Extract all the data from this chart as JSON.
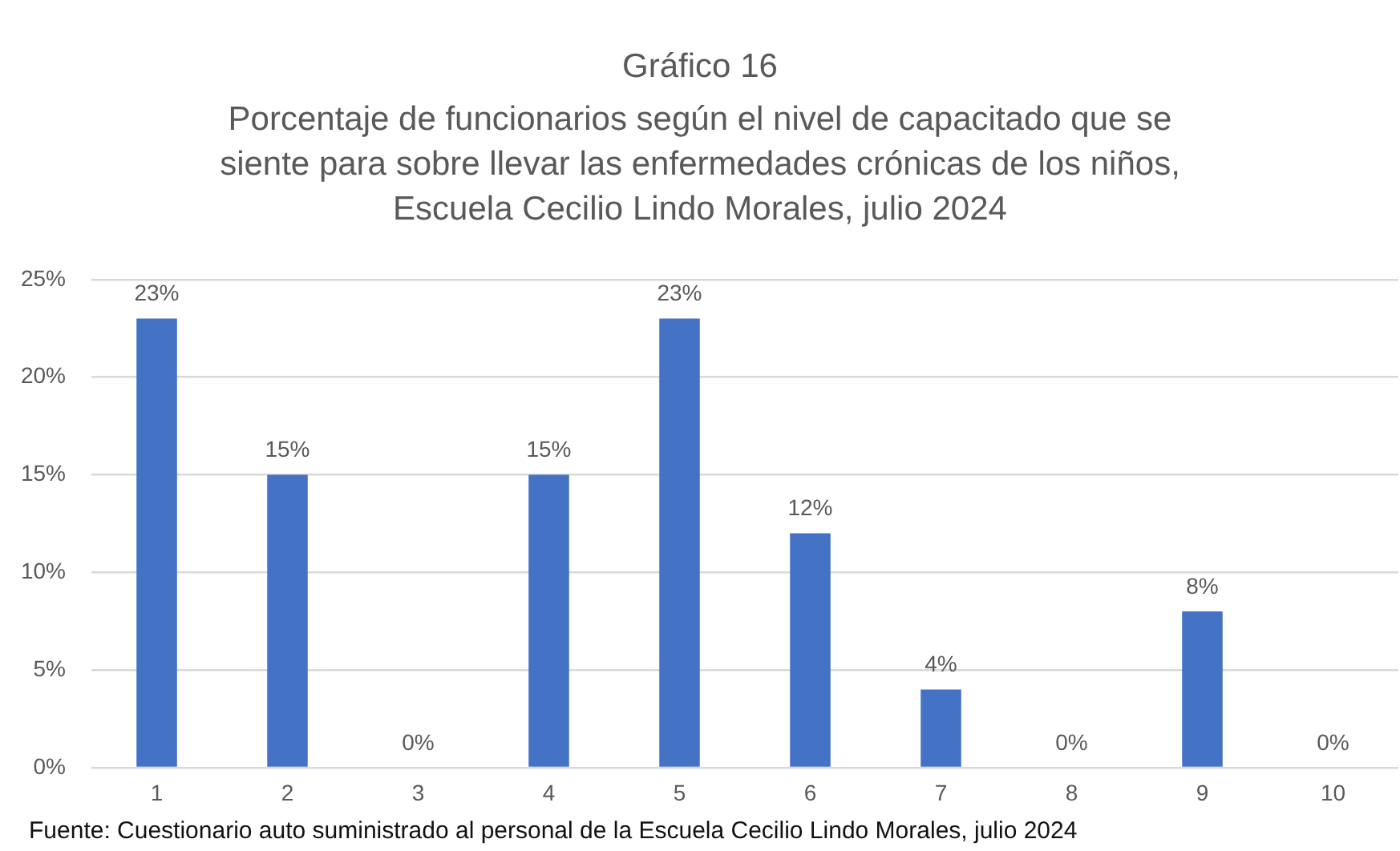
{
  "chart_data": {
    "type": "bar",
    "title": "Gráfico 16",
    "subtitle": "Porcentaje de funcionarios según el nivel de capacitado que se siente para sobre llevar las enfermedades crónicas de los niños, Escuela Cecilio Lindo Morales, julio 2024",
    "categories": [
      "1",
      "2",
      "3",
      "4",
      "5",
      "6",
      "7",
      "8",
      "9",
      "10"
    ],
    "values": [
      23,
      15,
      0,
      15,
      23,
      12,
      4,
      0,
      8,
      0
    ],
    "value_labels": [
      "23%",
      "15%",
      "0%",
      "15%",
      "23%",
      "12%",
      "4%",
      "0%",
      "8%",
      "0%"
    ],
    "color": "#4472c4",
    "ylim": [
      0,
      25
    ],
    "yticks": [
      {
        "value": 0,
        "label": "0%"
      },
      {
        "value": 5,
        "label": "5%"
      },
      {
        "value": 10,
        "label": "10%"
      },
      {
        "value": 15,
        "label": "15%"
      },
      {
        "value": 20,
        "label": "20%"
      },
      {
        "value": 25,
        "label": "25%"
      }
    ],
    "grid": "y",
    "annotations": [
      "Fuente: Cuestionario auto suministrado al personal de la Escuela Cecilio Lindo Morales, julio 2024"
    ]
  }
}
